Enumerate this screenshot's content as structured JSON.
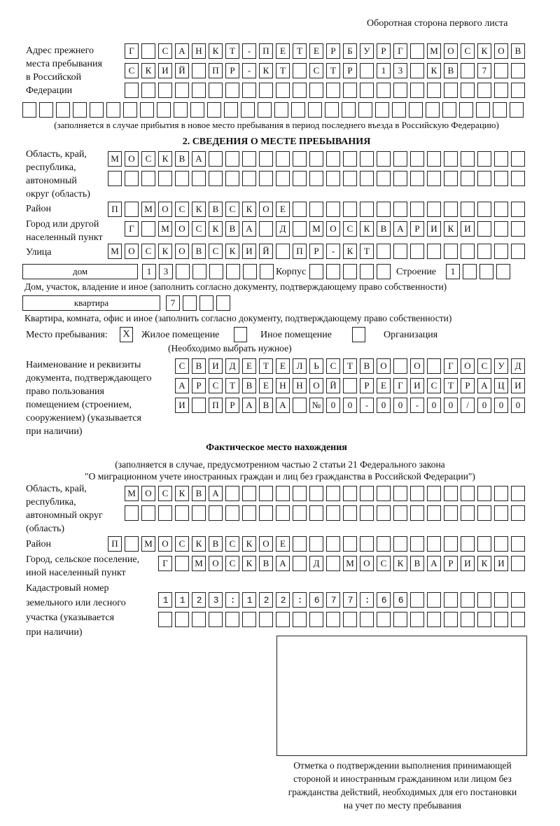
{
  "header": {
    "sheet_note": "Оборотная сторона первого листа"
  },
  "previous_address": {
    "label": [
      "Адрес прежнего",
      "места пребывания",
      "в Российской",
      "Федерации"
    ],
    "rows": [
      "Г САНКТ-ПЕТЕРБУРГ МОСКОВ",
      "СКИЙ ПР-КТ СТР 13 КВ 7",
      "",
      ""
    ],
    "note": "(заполняется в случае прибытия в новое место пребывания в период последнего въезда в Российскую Федерацию)"
  },
  "section2": {
    "title": "2. СВЕДЕНИЯ О МЕСТЕ ПРЕБЫВАНИЯ",
    "region_label": [
      "Область, край,",
      "республика,",
      "автономный",
      "округ (область)"
    ],
    "region_rows": [
      "МОСКВА",
      ""
    ],
    "district_label": "Район",
    "district": "П МОСКВСКОЕ",
    "city_label": [
      "Город или другой",
      "населенный пункт"
    ],
    "city": "Г МОСКВА Д МОСКВАРИКИ",
    "street_label": "Улица",
    "street": "МОСКОВСКИЙ ПР-КТ",
    "house_type": "дом",
    "house": "13",
    "building_label": "Корпус",
    "building": "",
    "structure_label": "Строение",
    "structure": "1",
    "house_note": "Дом, участок, владение и иное (заполнить согласно документу, подтверждающему право собственности)",
    "apartment_type": "квартира",
    "apartment": "7",
    "apartment_note": "Квартира, комната, офис и иное (заполнить согласно документу, подтверждающему право собственности)",
    "stay_place_label": "Место пребывания:",
    "stay_options": [
      {
        "label": "Жилое помещение",
        "mark": "X"
      },
      {
        "label": "Иное помещение",
        "mark": ""
      },
      {
        "label": "Организация",
        "mark": ""
      }
    ],
    "choose_note": "(Необходимо выбрать нужное)",
    "document_label": [
      "Наименование и реквизиты",
      "документа, подтверждающего",
      "право пользования",
      "помещением (строением,",
      "сооружением) (указывается",
      "при наличии)"
    ],
    "document_rows": [
      "СВИДЕТЕЛЬСТВО О ГОСУД",
      "АРСТВЕННОЙ РЕГИСТРАЦИ",
      "И ПРАВА №00-00-00/000"
    ]
  },
  "actual": {
    "title": "Фактическое место нахождения",
    "note": [
      "(заполняется в случае, предусмотренном частью 2 статьи 21 Федерального закона",
      "\"О миграционном учете иностранных граждан и лиц без гражданства в Российской Федерации\")"
    ],
    "region_label": [
      "Область, край,",
      "республика,",
      "автономный округ",
      "(область)"
    ],
    "region_rows": [
      "МОСКВА",
      ""
    ],
    "district_label": "Район",
    "district": "П МОСКВСКОЕ",
    "city_label": [
      "Город, сельское поселение,",
      "иной населенный пункт"
    ],
    "city": "Г МОСКВА Д МОСКВАРИКИ",
    "cadastral_label": [
      "Кадастровый номер",
      "земельного или лесного",
      "участка (указывается",
      "при наличии)"
    ],
    "cadastral_rows": [
      "1123:122:677:66",
      ""
    ]
  },
  "confirmation": {
    "caption": [
      "Отметка о подтверждении выполнения принимающей",
      "стороной и иностранным гражданином или лицом без",
      "гражданства действий, необходимых для его постановки",
      "на учет по месту пребывания"
    ]
  }
}
